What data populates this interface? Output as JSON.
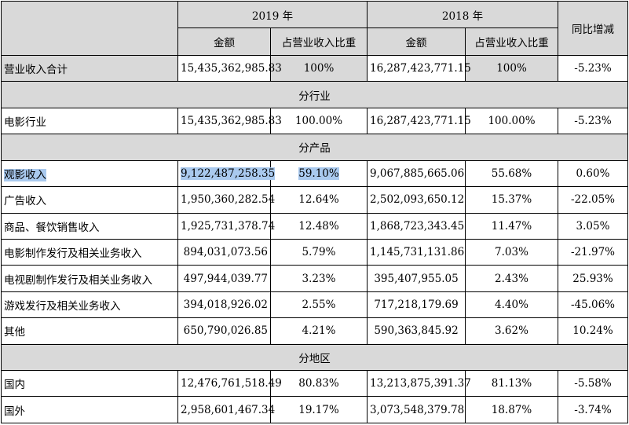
{
  "header": {
    "year_2019": "2019 年",
    "year_2018": "2018 年",
    "yoy": "同比增减",
    "amount": "金额",
    "ratio": "占营业收入比重"
  },
  "total": {
    "label": "营业收入合计",
    "a2019": "15,435,362,985.83",
    "r2019": "100%",
    "a2018": "16,287,423,771.15",
    "r2018": "100%",
    "yoy": "-5.23%"
  },
  "sections": {
    "industry": {
      "title": "分行业",
      "rows": [
        {
          "label": "电影行业",
          "a2019": "15,435,362,985.83",
          "r2019": "100.00%",
          "a2018": "16,287,423,771.15",
          "r2018": "100.00%",
          "yoy": "-5.23%"
        }
      ]
    },
    "product": {
      "title": "分产品",
      "rows": [
        {
          "label": "观影收入",
          "a2019": "9,122,487,258.35",
          "r2019": "59.10%",
          "a2018": "9,067,885,665.06",
          "r2018": "55.68%",
          "yoy": "0.60%"
        },
        {
          "label": "广告收入",
          "a2019": "1,950,360,282.54",
          "r2019": "12.64%",
          "a2018": "2,502,093,650.12",
          "r2018": "15.37%",
          "yoy": "-22.05%"
        },
        {
          "label": "商品、餐饮销售收入",
          "a2019": "1,925,731,378.74",
          "r2019": "12.48%",
          "a2018": "1,868,723,343.45",
          "r2018": "11.47%",
          "yoy": "3.05%"
        },
        {
          "label": "电影制作发行及相关业务收入",
          "a2019": "894,031,073.56",
          "r2019": "5.79%",
          "a2018": "1,145,731,131.86",
          "r2018": "7.03%",
          "yoy": "-21.97%"
        },
        {
          "label": "电视剧制作发行及相关业务收入",
          "a2019": "497,944,039.77",
          "r2019": "3.23%",
          "a2018": "395,407,955.05",
          "r2018": "2.43%",
          "yoy": "25.93%"
        },
        {
          "label": "游戏发行及相关业务收入",
          "a2019": "394,018,926.02",
          "r2019": "2.55%",
          "a2018": "717,218,179.69",
          "r2018": "4.40%",
          "yoy": "-45.06%"
        },
        {
          "label": "其他",
          "a2019": "650,790,026.85",
          "r2019": "4.21%",
          "a2018": "590,363,845.92",
          "r2018": "3.62%",
          "yoy": "10.24%"
        }
      ]
    },
    "region": {
      "title": "分地区",
      "rows": [
        {
          "label": "国内",
          "a2019": "12,476,761,518.49",
          "r2019": "80.83%",
          "a2018": "13,213,875,391.37",
          "r2018": "81.13%",
          "yoy": "-5.58%"
        },
        {
          "label": "国外",
          "a2019": "2,958,601,467.34",
          "r2019": "19.17%",
          "a2018": "3,073,548,379.78",
          "r2018": "18.87%",
          "yoy": "-3.74%"
        }
      ]
    }
  }
}
